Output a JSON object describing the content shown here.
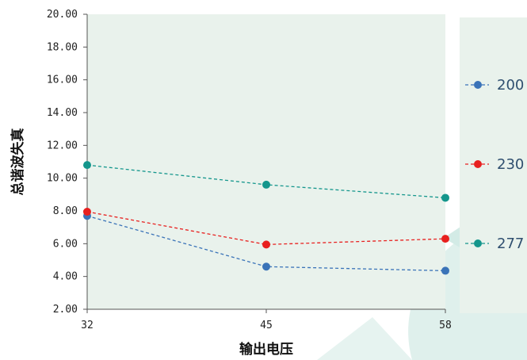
{
  "chart_data": {
    "type": "line",
    "title": "",
    "xlabel": "输出电压",
    "ylabel": "总谐波失真",
    "categories": [
      "32",
      "45",
      "58"
    ],
    "ylim": [
      2,
      20
    ],
    "yticks": [
      "2.00",
      "4.00",
      "6.00",
      "8.00",
      "10.00",
      "12.00",
      "14.00",
      "16.00",
      "18.00",
      "20.00"
    ],
    "grid": false,
    "legend_position": "right",
    "series": [
      {
        "name": "200",
        "color": "#3a73b8",
        "values": [
          7.7,
          4.6,
          4.35
        ]
      },
      {
        "name": "230",
        "color": "#e8201f",
        "values": [
          7.95,
          5.95,
          6.3
        ]
      },
      {
        "name": "277",
        "color": "#14968c",
        "values": [
          10.8,
          9.6,
          8.8
        ]
      }
    ]
  }
}
